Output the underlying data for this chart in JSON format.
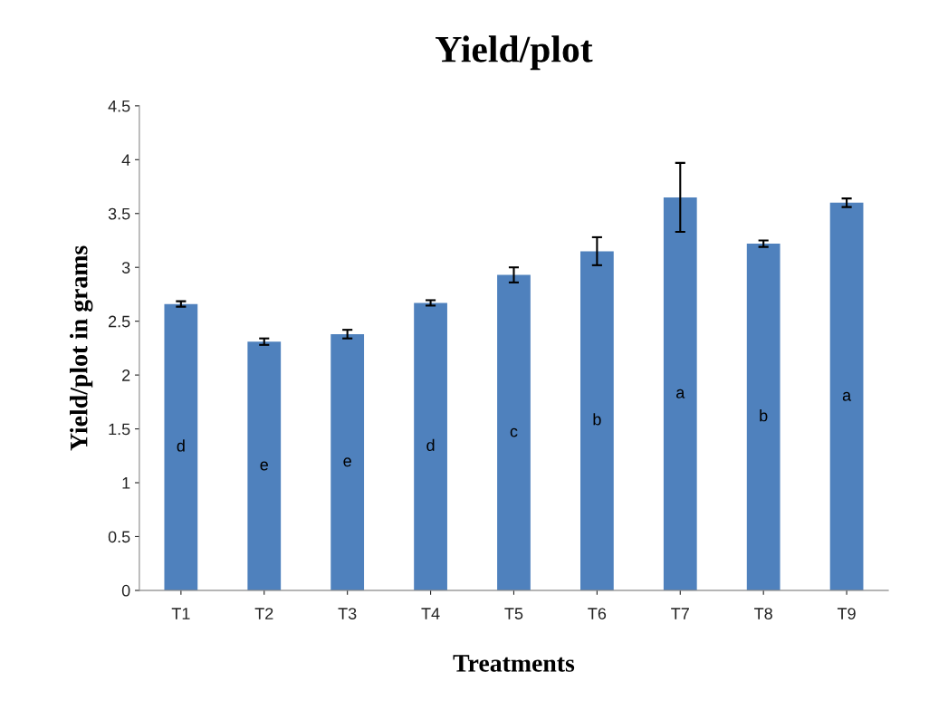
{
  "chart_data": {
    "type": "bar",
    "title": "Yield/plot",
    "xlabel": "Treatments",
    "ylabel": "Yield/plot in grams",
    "categories": [
      "T1",
      "T2",
      "T3",
      "T4",
      "T5",
      "T6",
      "T7",
      "T8",
      "T9"
    ],
    "values": [
      2.66,
      2.31,
      2.38,
      2.67,
      2.93,
      3.15,
      3.65,
      3.22,
      3.6
    ],
    "errors": [
      0.025,
      0.03,
      0.04,
      0.025,
      0.07,
      0.13,
      0.32,
      0.03,
      0.04
    ],
    "color": "#4f81bd",
    "ylim": [
      0,
      4.5
    ],
    "yticks": [
      0,
      0.5,
      1,
      1.5,
      2,
      2.5,
      3,
      3.5,
      4,
      4.5
    ],
    "grid": false,
    "legend": false,
    "value_labels": [
      "d",
      "e",
      "e",
      "d",
      "c",
      "b",
      "a",
      "b",
      "a"
    ]
  }
}
